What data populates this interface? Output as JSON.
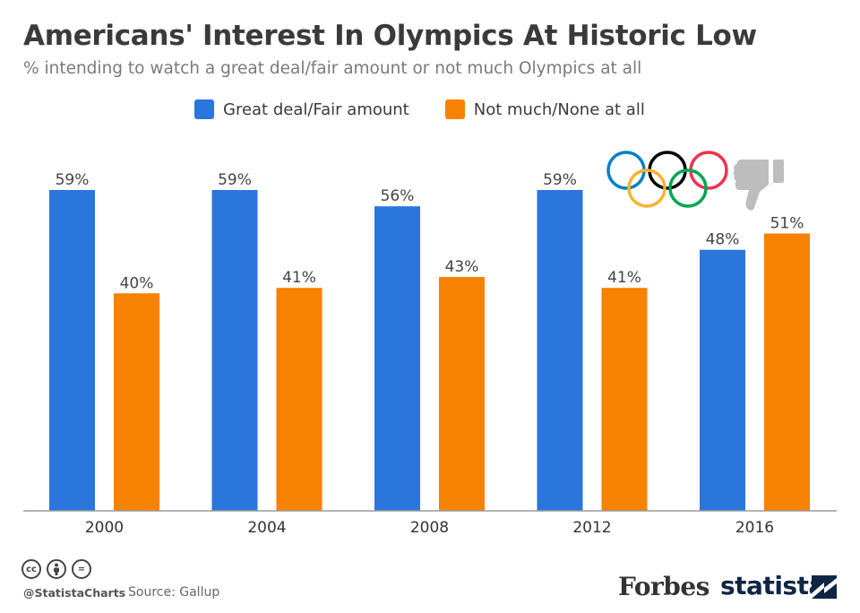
{
  "title": "Americans' Interest In Olympics At Historic Low",
  "subtitle": "% intending to watch a great deal/fair amount or not much Olympics at all",
  "legend": [
    {
      "label": "Great deal/Fair amount",
      "color": "#2a76dc"
    },
    {
      "label": "Not much/None at all",
      "color": "#f78100"
    }
  ],
  "chart_data": {
    "type": "bar",
    "categories": [
      "2000",
      "2004",
      "2008",
      "2012",
      "2016"
    ],
    "series": [
      {
        "name": "Great deal/Fair amount",
        "values": [
          59,
          59,
          56,
          59,
          48
        ],
        "labels": [
          "59%",
          "59%",
          "56%",
          "59%",
          "48%"
        ],
        "color": "#2a76dc"
      },
      {
        "name": "Not much/None at all",
        "values": [
          40,
          41,
          43,
          41,
          51
        ],
        "labels": [
          "40%",
          "41%",
          "43%",
          "41%",
          "51%"
        ],
        "color": "#f78100"
      }
    ],
    "ylim": [
      0,
      65
    ],
    "grid": false,
    "legend_position": "top"
  },
  "decorations": {
    "olympic_rings_colors": [
      "#0081c8",
      "#fcb131",
      "#000000",
      "#00a651",
      "#ee334e"
    ],
    "icons": [
      "olympic-rings-icon",
      "thumbs-down-icon"
    ]
  },
  "footer": {
    "license_icons": [
      "cc",
      "by",
      "="
    ],
    "handle": "@StatistaCharts",
    "source": "Source: Gallup",
    "forbes": "Forbes",
    "statista": "statista"
  }
}
